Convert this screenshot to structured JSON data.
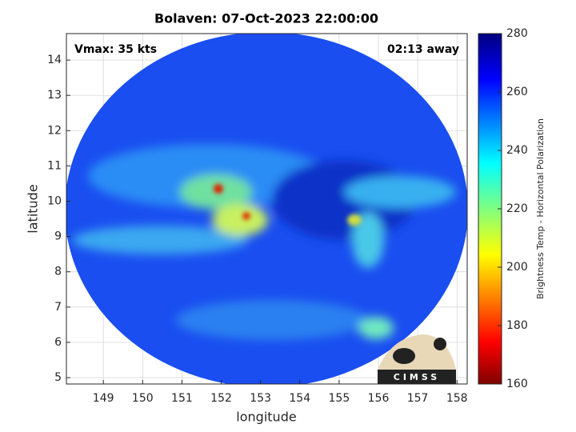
{
  "chart_data": {
    "type": "heatmap",
    "title": "Bolaven: 07-Oct-2023 22:00:00",
    "annotations": [
      "Vmax: 35 kts",
      "02:13 away"
    ],
    "xlabel": "longitude",
    "ylabel": "latitude",
    "xlim": [
      148.06,
      158.26
    ],
    "xticks": [
      149,
      150,
      151,
      152,
      153,
      154,
      155,
      156,
      157,
      158
    ],
    "ylim": [
      4.82,
      14.75
    ],
    "yticks": [
      5,
      6,
      7,
      8,
      9,
      10,
      11,
      12,
      13,
      14
    ],
    "grid": true,
    "colorbar": {
      "label": "Brightness Temp - Horizontal Polarization",
      "lim": [
        160,
        280
      ],
      "ticks": [
        160,
        180,
        200,
        220,
        240,
        260,
        280
      ]
    },
    "logo": "CIMSS"
  }
}
